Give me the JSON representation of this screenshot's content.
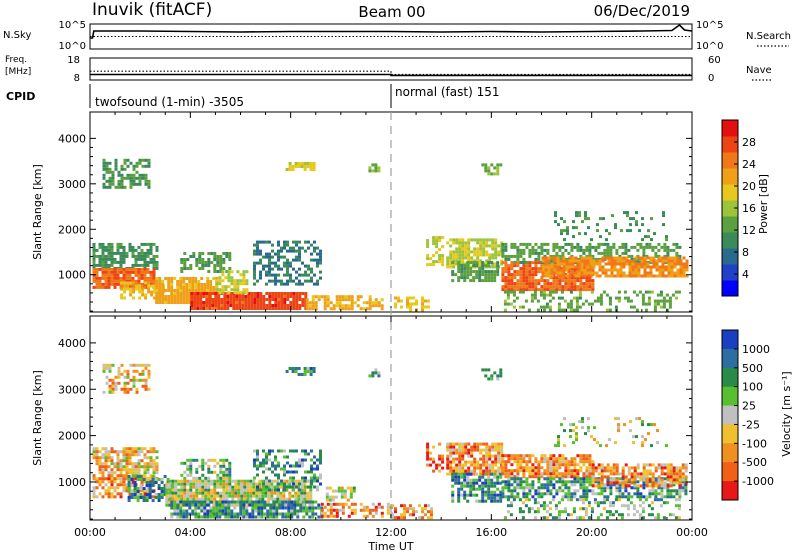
{
  "header": {
    "station": "Inuvik (fitACF)",
    "beam": "Beam 00",
    "date": "06/Dec/2019"
  },
  "top_panels": {
    "nsky": {
      "label": "N.Sky",
      "left_ticks": [
        "10^5",
        "10^0"
      ],
      "right_ticks": [
        "10^5",
        "10^0"
      ],
      "right_label": "N.Search",
      "nsky_series_log10": [
        [
          0,
          2.2
        ],
        [
          0.1,
          2.2
        ],
        [
          0.15,
          3.6
        ],
        [
          2,
          3.6
        ],
        [
          4,
          3.5
        ],
        [
          6,
          3.4
        ],
        [
          8,
          3.5
        ],
        [
          10,
          3.5
        ],
        [
          12,
          3.5
        ],
        [
          14,
          3.4
        ],
        [
          16,
          3.5
        ],
        [
          18,
          3.4
        ],
        [
          20,
          3.5
        ],
        [
          22,
          3.6
        ],
        [
          23.2,
          3.7
        ],
        [
          23.5,
          4.8
        ],
        [
          23.7,
          3.8
        ],
        [
          24,
          3.6
        ]
      ],
      "nsearch_series_log10": [
        [
          0,
          2.5
        ],
        [
          24,
          2.5
        ]
      ]
    },
    "freq": {
      "label_line1": "Freq.",
      "label_line2": "[MHz]",
      "left_ticks": [
        "18",
        "8"
      ],
      "right_ticks": [
        "60",
        "0"
      ],
      "right_label": "Nave",
      "freq_mhz": [
        [
          0,
          10.5
        ],
        [
          12,
          10.5
        ],
        [
          12,
          10.1
        ],
        [
          24,
          10.1
        ]
      ],
      "nave": [
        [
          0,
          24
        ],
        [
          12,
          24
        ],
        [
          12,
          15
        ],
        [
          24,
          15
        ]
      ]
    },
    "cpid": {
      "label": "CPID",
      "segments": [
        {
          "text": "twofsound (1-min) -3505",
          "start_hour": 0,
          "end_hour": 12
        },
        {
          "text": "normal (fast) 151",
          "start_hour": 12,
          "end_hour": 24
        }
      ]
    }
  },
  "chart_data": [
    {
      "type": "heatmap",
      "name": "power",
      "ylabel": "Slant Range [km]",
      "xlabel": "",
      "xlim": [
        0,
        24
      ],
      "ylim": [
        180,
        4580
      ],
      "yticks": [
        1000,
        2000,
        3000,
        4000
      ],
      "colorbar": {
        "label": "Power [dB]",
        "ticks": [
          "4",
          "8",
          "12",
          "16",
          "20",
          "24",
          "28"
        ],
        "min": 0,
        "max": 32,
        "colors": [
          "#0000ff",
          "#2040c8",
          "#2a6a8e",
          "#3a8a5a",
          "#5aa040",
          "#9cc43a",
          "#e8c81e",
          "#f0a018",
          "#f07818",
          "#ec4414",
          "#e41010"
        ]
      },
      "regions": [
        {
          "t": [
            0.1,
            2.7
          ],
          "r": [
            1150,
            1700
          ],
          "v": 10,
          "d": 0.65
        },
        {
          "t": [
            0.1,
            2.6
          ],
          "r": [
            700,
            1150
          ],
          "v": 27,
          "d": 0.92
        },
        {
          "t": [
            1.2,
            2.9
          ],
          "r": [
            500,
            850
          ],
          "v": 20,
          "d": 0.55
        },
        {
          "t": [
            0.5,
            2.4
          ],
          "r": [
            2950,
            3550
          ],
          "v": 11,
          "d": 0.55
        },
        {
          "t": [
            2.6,
            5.0
          ],
          "r": [
            380,
            950
          ],
          "v": 22,
          "d": 0.85
        },
        {
          "t": [
            4.0,
            8.6
          ],
          "r": [
            230,
            620
          ],
          "v": 29,
          "d": 0.95
        },
        {
          "t": [
            3.6,
            5.6
          ],
          "r": [
            1050,
            1500
          ],
          "v": 12,
          "d": 0.55
        },
        {
          "t": [
            5.0,
            6.2
          ],
          "r": [
            600,
            1100
          ],
          "v": 18,
          "d": 0.6
        },
        {
          "t": [
            6.5,
            9.2
          ],
          "r": [
            800,
            1750
          ],
          "v": 8,
          "d": 0.5
        },
        {
          "t": [
            7.8,
            8.9
          ],
          "r": [
            3300,
            3480
          ],
          "v": 18,
          "d": 0.7
        },
        {
          "t": [
            8.6,
            11.6
          ],
          "r": [
            230,
            550
          ],
          "v": 22,
          "d": 0.65
        },
        {
          "t": [
            11.1,
            11.5
          ],
          "r": [
            3300,
            3450
          ],
          "v": 14,
          "d": 0.6
        },
        {
          "t": [
            12.0,
            13.6
          ],
          "r": [
            220,
            520
          ],
          "v": 20,
          "d": 0.5
        },
        {
          "t": [
            13.4,
            14.1
          ],
          "r": [
            1250,
            1850
          ],
          "v": 18,
          "d": 0.5
        },
        {
          "t": [
            14.2,
            16.4
          ],
          "r": [
            1200,
            1800
          ],
          "v": 17,
          "d": 0.75
        },
        {
          "t": [
            14.4,
            16.2
          ],
          "r": [
            900,
            1300
          ],
          "v": 12,
          "d": 0.6
        },
        {
          "t": [
            15.6,
            16.4
          ],
          "r": [
            3250,
            3450
          ],
          "v": 14,
          "d": 0.55
        },
        {
          "t": [
            16.4,
            20.0
          ],
          "r": [
            650,
            1300
          ],
          "v": 27,
          "d": 0.9
        },
        {
          "t": [
            16.4,
            23.5
          ],
          "r": [
            1250,
            1700
          ],
          "v": 12,
          "d": 0.55
        },
        {
          "t": [
            18.0,
            23.8
          ],
          "r": [
            950,
            1400
          ],
          "v": 24,
          "d": 0.8
        },
        {
          "t": [
            16.5,
            23.5
          ],
          "r": [
            230,
            650
          ],
          "v": 13,
          "d": 0.35
        },
        {
          "t": [
            18.5,
            23.0
          ],
          "r": [
            1800,
            2400
          ],
          "v": 10,
          "d": 0.18
        }
      ]
    },
    {
      "type": "heatmap",
      "name": "velocity",
      "ylabel": "Slant Range [km]",
      "xlabel": "Time UT",
      "xlim": [
        0,
        24
      ],
      "ylim": [
        180,
        4580
      ],
      "xticks": [
        "00:00",
        "04:00",
        "08:00",
        "12:00",
        "16:00",
        "20:00",
        "00:00"
      ],
      "yticks": [
        1000,
        2000,
        3000,
        4000
      ],
      "colorbar": {
        "label": "Velocity [m s⁻¹]",
        "ticks": [
          "1000",
          "500",
          "100",
          "25",
          "-25",
          "-100",
          "-500",
          "-1000"
        ],
        "colors": [
          "#1a40c0",
          "#2c6ea0",
          "#2a8a48",
          "#58c030",
          "#c0c0c0",
          "#f0c030",
          "#f09020",
          "#f06018",
          "#e81818"
        ]
      },
      "regions": [
        {
          "t": [
            0.1,
            2.7
          ],
          "r": [
            1100,
            1750
          ],
          "v": 5,
          "d": 0.75
        },
        {
          "t": [
            0.1,
            2.5
          ],
          "r": [
            650,
            1100
          ],
          "v": 6,
          "d": 0.7
        },
        {
          "t": [
            1.5,
            3.2
          ],
          "r": [
            600,
            1150
          ],
          "v": 2,
          "d": 0.6
        },
        {
          "t": [
            0.5,
            2.4
          ],
          "r": [
            2950,
            3550
          ],
          "v": 5,
          "d": 0.5
        },
        {
          "t": [
            3.0,
            8.8
          ],
          "r": [
            500,
            1050
          ],
          "v": 4,
          "d": 0.9
        },
        {
          "t": [
            3.2,
            9.2
          ],
          "r": [
            230,
            600
          ],
          "v": 2,
          "d": 0.85
        },
        {
          "t": [
            3.6,
            5.6
          ],
          "r": [
            1050,
            1500
          ],
          "v": 3,
          "d": 0.5
        },
        {
          "t": [
            6.5,
            9.2
          ],
          "r": [
            800,
            1700
          ],
          "v": 2,
          "d": 0.4
        },
        {
          "t": [
            7.8,
            8.9
          ],
          "r": [
            3300,
            3480
          ],
          "v": 2,
          "d": 0.7
        },
        {
          "t": [
            9.4,
            10.5
          ],
          "r": [
            600,
            900
          ],
          "v": 4,
          "d": 0.6
        },
        {
          "t": [
            9.2,
            12.0
          ],
          "r": [
            230,
            550
          ],
          "v": 6,
          "d": 0.55
        },
        {
          "t": [
            11.1,
            11.5
          ],
          "r": [
            3300,
            3450
          ],
          "v": 3,
          "d": 0.6
        },
        {
          "t": [
            12.0,
            13.6
          ],
          "r": [
            220,
            520
          ],
          "v": 6,
          "d": 0.5
        },
        {
          "t": [
            13.4,
            14.1
          ],
          "r": [
            1250,
            1850
          ],
          "v": 7,
          "d": 0.5
        },
        {
          "t": [
            14.2,
            16.4
          ],
          "r": [
            1200,
            1850
          ],
          "v": 6,
          "d": 0.75
        },
        {
          "t": [
            14.4,
            16.4
          ],
          "r": [
            600,
            1200
          ],
          "v": 2,
          "d": 0.65
        },
        {
          "t": [
            15.6,
            16.4
          ],
          "r": [
            3250,
            3450
          ],
          "v": 3,
          "d": 0.55
        },
        {
          "t": [
            16.4,
            20.0
          ],
          "r": [
            1100,
            1600
          ],
          "v": 6,
          "d": 0.8
        },
        {
          "t": [
            16.4,
            23.8
          ],
          "r": [
            650,
            1100
          ],
          "v": 2,
          "d": 0.7
        },
        {
          "t": [
            20.0,
            23.8
          ],
          "r": [
            900,
            1400
          ],
          "v": 6,
          "d": 0.7
        },
        {
          "t": [
            16.5,
            23.5
          ],
          "r": [
            230,
            650
          ],
          "v": 3,
          "d": 0.35
        },
        {
          "t": [
            18.5,
            23.0
          ],
          "r": [
            1800,
            2400
          ],
          "v": 4,
          "d": 0.15
        }
      ]
    }
  ]
}
